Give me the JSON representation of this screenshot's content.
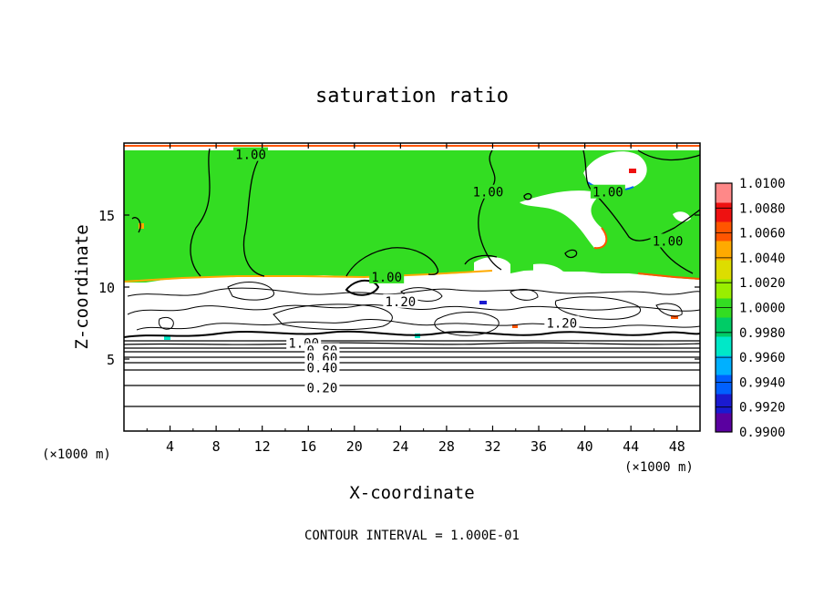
{
  "chart_data": {
    "type": "contour",
    "title": "saturation ratio",
    "xlabel": "X-coordinate",
    "ylabel": "Z-coordinate",
    "x_unit_left": "(×1000 m)",
    "x_unit_right": "(×1000 m)",
    "xlim": [
      0,
      50
    ],
    "ylim": [
      0,
      20
    ],
    "xticks": [
      4,
      8,
      12,
      16,
      20,
      24,
      28,
      32,
      36,
      40,
      44,
      48
    ],
    "yticks": [
      5,
      10,
      15
    ],
    "footnote": "CONTOUR INTERVAL = 1.000E-01",
    "contour_labels": [
      {
        "text": "1.00",
        "x": 11.0,
        "y": 19.2
      },
      {
        "text": "1.00",
        "x": 31.6,
        "y": 16.6
      },
      {
        "text": "1.00",
        "x": 42.0,
        "y": 16.6
      },
      {
        "text": "1.00",
        "x": 47.2,
        "y": 13.2
      },
      {
        "text": "1.00",
        "x": 22.8,
        "y": 10.7
      },
      {
        "text": "1.20",
        "x": 24.0,
        "y": 9.0
      },
      {
        "text": "1.20",
        "x": 38.0,
        "y": 7.5
      },
      {
        "text": "1.00",
        "x": 15.6,
        "y": 6.1
      },
      {
        "text": "0.80",
        "x": 17.2,
        "y": 5.6
      },
      {
        "text": "0.60",
        "x": 17.2,
        "y": 5.1
      },
      {
        "text": "0.40",
        "x": 17.2,
        "y": 4.4
      },
      {
        "text": "0.20",
        "x": 17.2,
        "y": 3.0
      }
    ],
    "colorbar": {
      "min": 0.99,
      "max": 1.01,
      "labels": [
        "1.0100",
        "1.0080",
        "1.0060",
        "1.0040",
        "1.0020",
        "1.0000",
        "0.9980",
        "0.9960",
        "0.9940",
        "0.9920",
        "0.9900"
      ],
      "colors": [
        "#5a00a0",
        "#1a1ad0",
        "#0060ff",
        "#00b0ff",
        "#00e8c8",
        "#00cc66",
        "#33dd22",
        "#99ee00",
        "#dddd00",
        "#ffaa00",
        "#ff5500",
        "#ee1111",
        "#ff8888"
      ]
    },
    "colors": {
      "supersaturated_fill": "#33dd22",
      "subsaturated_region": "#ffffff",
      "contour_line": "#000000"
    }
  }
}
